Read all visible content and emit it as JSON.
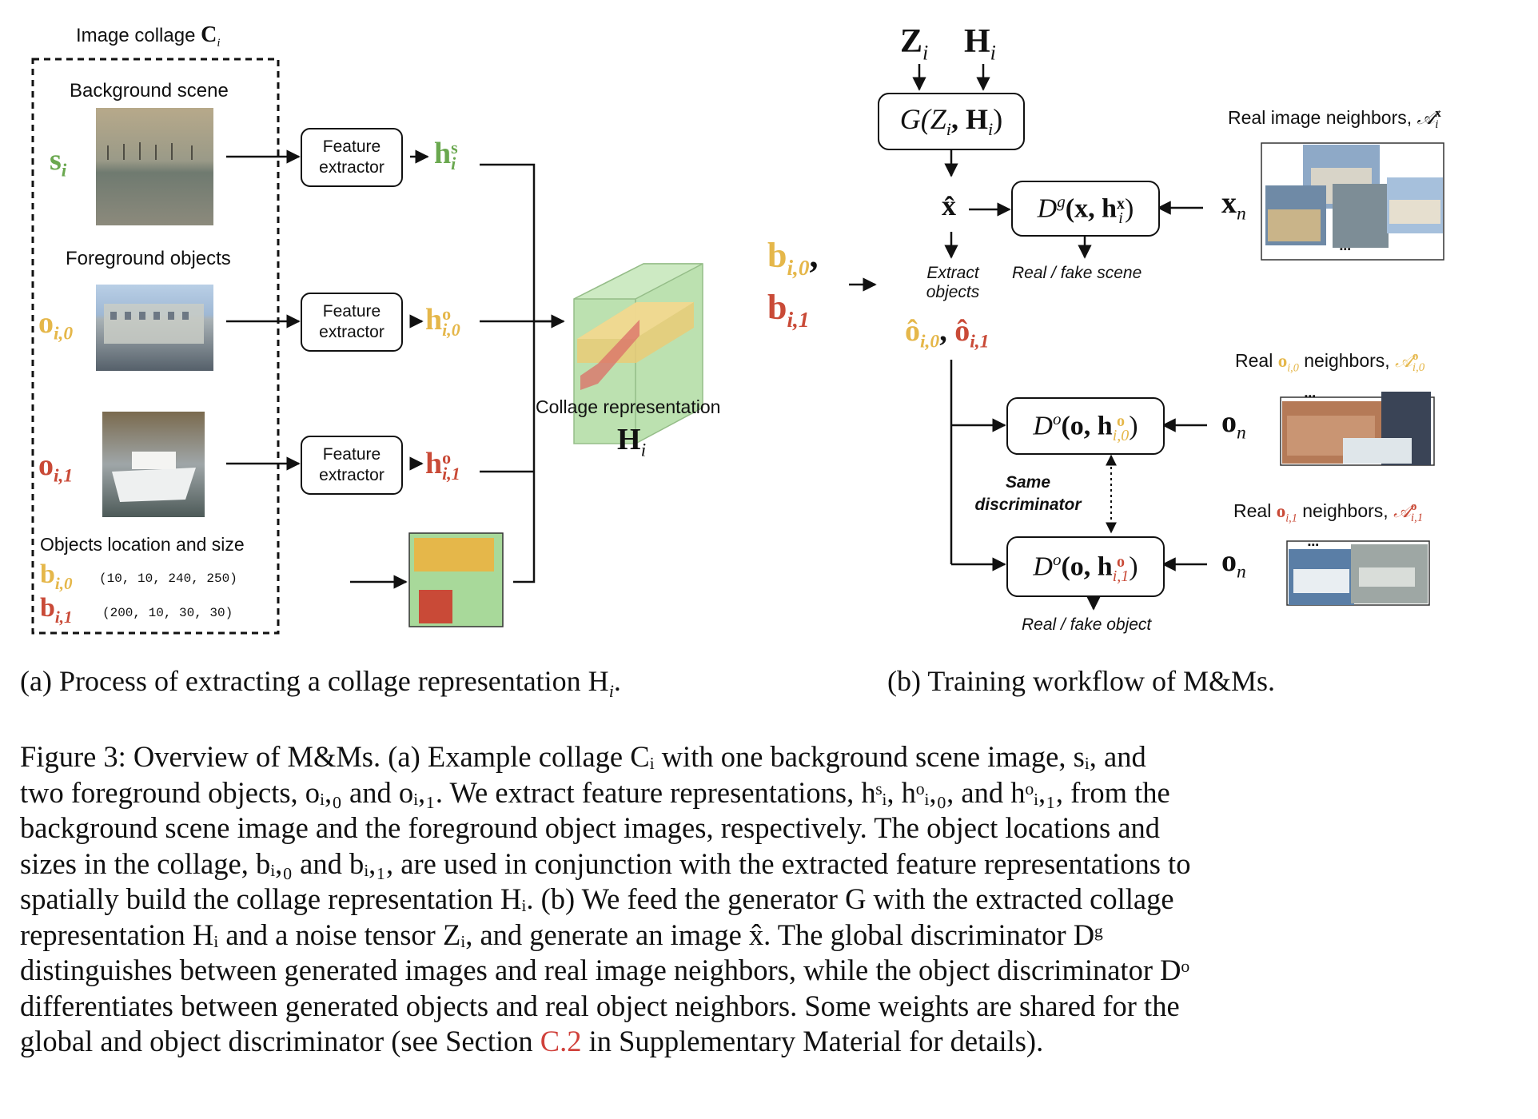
{
  "panel_a": {
    "title": "Image collage",
    "title_math": "C",
    "title_sub": "i",
    "bg_label": "Background scene",
    "fg_label": "Foreground objects",
    "loc_label": "Objects location and size",
    "s_var": "s",
    "s_sub": "i",
    "o0_var": "o",
    "o0_sub": "i,0",
    "o1_var": "o",
    "o1_sub": "i,1",
    "b0_var": "b",
    "b0_sub": "i,0",
    "b0_val": "(10, 10, 240, 250)",
    "b1_var": "b",
    "b1_sub": "i,1",
    "b1_val": "(200, 10, 30, 30)",
    "fe_line1": "Feature",
    "fe_line2": "extractor",
    "hs_var": "h",
    "hs_sup": "s",
    "hs_sub": "i",
    "h0_var": "h",
    "h0_sup": "o",
    "h0_sub": "i,0",
    "h1_var": "h",
    "h1_sup": "o",
    "h1_sub": "i,1",
    "collage_label": "Collage representation",
    "H_var": "H",
    "H_sub": "i",
    "caption": "(a) Process of extracting a collage representation H",
    "caption_sub": "i",
    "caption_end": "."
  },
  "panel_b": {
    "Z_var": "Z",
    "Z_sub": "i",
    "H_var": "H",
    "H_sub": "i",
    "G_label": "G(Z",
    "G_sub1": "i",
    "G_mid": ", H",
    "G_sub2": "i",
    "G_end": ")",
    "xhat": "x̂",
    "Dg_label": "D",
    "Dg_sup": "g",
    "Dg_args": "(x, h",
    "Dg_args_sup": "x",
    "Dg_args_sub": "i",
    "Dg_end": ")",
    "xn_var": "x",
    "xn_sub": "n",
    "real_fake_scene": "Real / fake scene",
    "extract_objects_1": "Extract",
    "extract_objects_2": "objects",
    "b_in_0": "b",
    "b_in_0_sub": "i,0",
    "b_in_1": "b",
    "b_in_1_sub": "i,1",
    "comma": ",",
    "ohat0": "ô",
    "ohat0_sub": "i,0",
    "ohat1": "ô",
    "ohat1_sub": "i,1",
    "real_img_neighbors": "Real image neighbors,",
    "A_x": "𝒜",
    "A_x_sup": "x",
    "A_x_sub": "i",
    "real_o0_pre": "Real",
    "real_o0_var": "o",
    "real_o0_sub": "i,0",
    "real_o0_post": "neighbors,",
    "A_o0": "𝒜",
    "A_o0_sup": "o",
    "A_o0_sub": "i,0",
    "real_o1_pre": "Real",
    "real_o1_var": "o",
    "real_o1_sub": "i,1",
    "real_o1_post": "neighbors,",
    "A_o1": "𝒜",
    "A_o1_sup": "o",
    "A_o1_sub": "i,1",
    "Do_label": "D",
    "Do_sup": "o",
    "Do_args": "(o, h",
    "Do0_sup": "o",
    "Do0_sub": "i,0",
    "Do1_sup": "o",
    "Do1_sub": "i,1",
    "Do_end": ")",
    "on_var": "o",
    "on_sub": "n",
    "same_disc_1": "Same",
    "same_disc_2": "discriminator",
    "real_fake_object": "Real / fake object",
    "dots": "▪▪▪",
    "caption": "(b) Training workflow of M&Ms."
  },
  "figure_caption": {
    "lines": [
      "Figure 3: Overview of M&Ms. (a) Example collage Cᵢ with one background scene image, sᵢ, and",
      "two foreground objects, oᵢ,₀ and oᵢ,₁. We extract feature representations, hˢᵢ, hᵒᵢ,₀, and hᵒᵢ,₁, from the",
      "background scene image and the foreground object images, respectively. The object locations and",
      "sizes in the collage, bᵢ,₀ and bᵢ,₁, are used in conjunction with the extracted feature representations to",
      "spatially build the collage representation Hᵢ. (b) We feed the generator G with the extracted collage",
      "representation Hᵢ and a noise tensor Zᵢ, and generate an image x̂. The global discriminator Dᵍ",
      "distinguishes between generated images and real image neighbors, while the object discriminator Dᵒ",
      "differentiates between generated objects and real object neighbors. Some weights are shared for the",
      "global and object discriminator (see Section C.2 in Supplementary Material for details)."
    ],
    "link_text": "C.2",
    "link_color": "#d0413b"
  },
  "colors": {
    "green": "#6aa84f",
    "yellow": "#e5b74a",
    "red": "#c94a37",
    "box_green": "#a8d99a"
  }
}
